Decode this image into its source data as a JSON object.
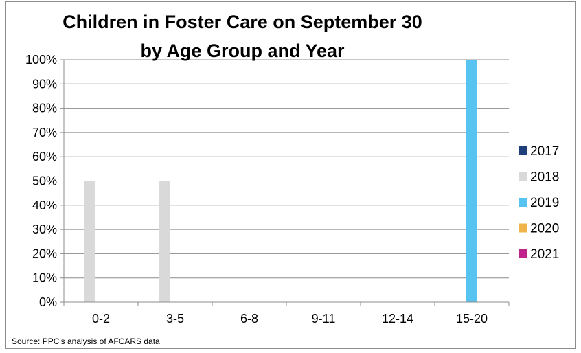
{
  "chart_data": {
    "type": "bar",
    "title": [
      "Children in Foster Care on September 30",
      "by Age Group and Year"
    ],
    "categories": [
      "0-2",
      "3-5",
      "6-8",
      "9-11",
      "12-14",
      "15-20"
    ],
    "series": [
      {
        "name": "2017",
        "color": "#1f3f7a",
        "values": [
          0,
          0,
          0,
          0,
          0,
          0
        ]
      },
      {
        "name": "2018",
        "color": "#d9d9d9",
        "values": [
          50,
          50,
          0,
          0,
          0,
          0
        ]
      },
      {
        "name": "2019",
        "color": "#56c3f0",
        "values": [
          0,
          0,
          0,
          0,
          0,
          100
        ]
      },
      {
        "name": "2020",
        "color": "#f0b54a",
        "values": [
          0,
          0,
          0,
          0,
          0,
          0
        ]
      },
      {
        "name": "2021",
        "color": "#c0248a",
        "values": [
          0,
          0,
          0,
          0,
          0,
          0
        ]
      }
    ],
    "ylim": [
      0,
      100
    ],
    "yticks": [
      "0%",
      "10%",
      "20%",
      "30%",
      "40%",
      "50%",
      "60%",
      "70%",
      "80%",
      "90%",
      "100%"
    ],
    "grid": true,
    "legend": "right",
    "xlabel": "",
    "ylabel": ""
  },
  "source": "Source: PPC's analysis of AFCARS data"
}
